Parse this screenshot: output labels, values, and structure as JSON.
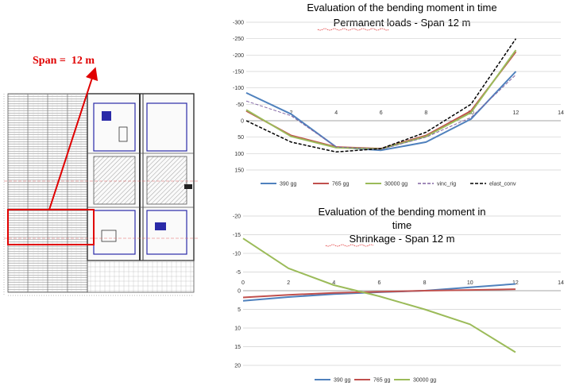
{
  "annotation": {
    "span_label": "Span =  12 m",
    "arrow_color": "#e00000"
  },
  "chart_data": [
    {
      "type": "line",
      "title": "Evaluation of the bending moment in time",
      "subtitle": "Permanent loads - Span 12 m",
      "xlabel": "",
      "ylabel": "",
      "xlim": [
        0,
        14
      ],
      "ylim": [
        150,
        -300
      ],
      "y_inverted": true,
      "x_ticks": [
        2,
        4,
        6,
        8,
        10,
        12,
        14
      ],
      "y_ticks": [
        -300,
        -250,
        -200,
        -150,
        -100,
        -50,
        0,
        50,
        100,
        150
      ],
      "grid": true,
      "legend_position": "bottom",
      "x": [
        0,
        2,
        4,
        6,
        8,
        10,
        12
      ],
      "series": [
        {
          "name": "390 gg",
          "color": "#4f81bd",
          "dash": "",
          "width": 2,
          "values": [
            -85,
            -20,
            80,
            90,
            65,
            -5,
            -150
          ]
        },
        {
          "name": "765 gg",
          "color": "#c0504d",
          "dash": "",
          "width": 2,
          "values": [
            -30,
            45,
            80,
            85,
            45,
            -30,
            -210
          ]
        },
        {
          "name": "30000 gg",
          "color": "#9bbb59",
          "dash": "",
          "width": 2,
          "values": [
            -33,
            48,
            82,
            86,
            48,
            -25,
            -215
          ]
        },
        {
          "name": "vinc_rig",
          "color": "#8064a2",
          "dash": "4 2",
          "width": 1,
          "values": [
            -60,
            -15,
            80,
            87,
            50,
            -10,
            -140
          ]
        },
        {
          "name": "elast_conv",
          "color": "#000000",
          "dash": "4 2",
          "width": 1.5,
          "values": [
            0,
            65,
            95,
            85,
            35,
            -50,
            -250
          ]
        }
      ]
    },
    {
      "type": "line",
      "title": "Evaluation of the bending moment in",
      "subtitle": "time",
      "subtitle2": "Shrinkage - Span 12 m",
      "xlabel": "",
      "ylabel": "",
      "xlim": [
        0,
        14
      ],
      "ylim": [
        20,
        -20
      ],
      "y_inverted": true,
      "x_ticks": [
        0,
        2,
        4,
        6,
        8,
        10,
        12,
        14
      ],
      "y_ticks": [
        -20,
        -15,
        -10,
        -5,
        0,
        5,
        10,
        15,
        20
      ],
      "grid": true,
      "legend_position": "bottom",
      "x": [
        0,
        2,
        4,
        6,
        8,
        10,
        12
      ],
      "series": [
        {
          "name": "390 gg",
          "color": "#4f81bd",
          "dash": "",
          "width": 2,
          "values": [
            2.7,
            1.7,
            0.9,
            0.4,
            0,
            -0.9,
            -1.8
          ]
        },
        {
          "name": "765 gg",
          "color": "#c0504d",
          "dash": "",
          "width": 2,
          "values": [
            1.8,
            1.1,
            0.6,
            0.3,
            0,
            -0.2,
            -0.4
          ]
        },
        {
          "name": "30000 gg",
          "color": "#9bbb59",
          "dash": "",
          "width": 2,
          "values": [
            -14,
            -6,
            -1.5,
            1.5,
            5,
            9,
            16.5
          ]
        }
      ]
    }
  ]
}
